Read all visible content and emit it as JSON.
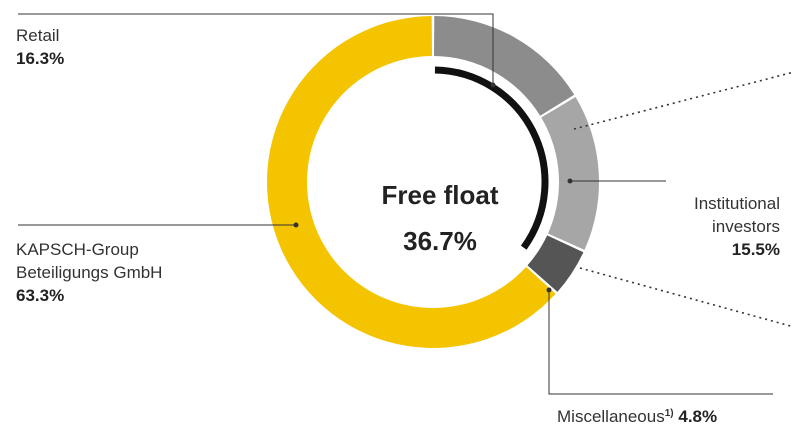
{
  "chart_data": {
    "type": "pie",
    "variant": "donut",
    "slices": [
      {
        "label": "Retail",
        "value": 16.3,
        "value_text": "16.3%",
        "color": "#8c8c8c"
      },
      {
        "label": "Institutional investors",
        "value": 15.5,
        "value_text": "15.5%",
        "color": "#a6a6a6"
      },
      {
        "label": "Miscellaneous",
        "footnote": "1)",
        "value": 4.8,
        "value_text": "4.8%",
        "color": "#555555"
      },
      {
        "label": "KAPSCH-Group Beteiligungs GmbH",
        "value": 63.3,
        "value_text": "63.3%",
        "color": "#f5c400"
      }
    ],
    "center": {
      "title": "Free float",
      "value": "36.7%"
    },
    "labels": {
      "retail": {
        "name": "Retail",
        "value": "16.3%"
      },
      "institutional": {
        "line1": "Institutional",
        "line2": "investors",
        "value": "15.5%"
      },
      "misc": {
        "name": "Miscellaneous",
        "footnote": "1)",
        "value": "4.8%"
      },
      "kapsch": {
        "line1": "KAPSCH-Group",
        "line2": "Beteiligungs GmbH",
        "value": "63.3%"
      }
    }
  }
}
